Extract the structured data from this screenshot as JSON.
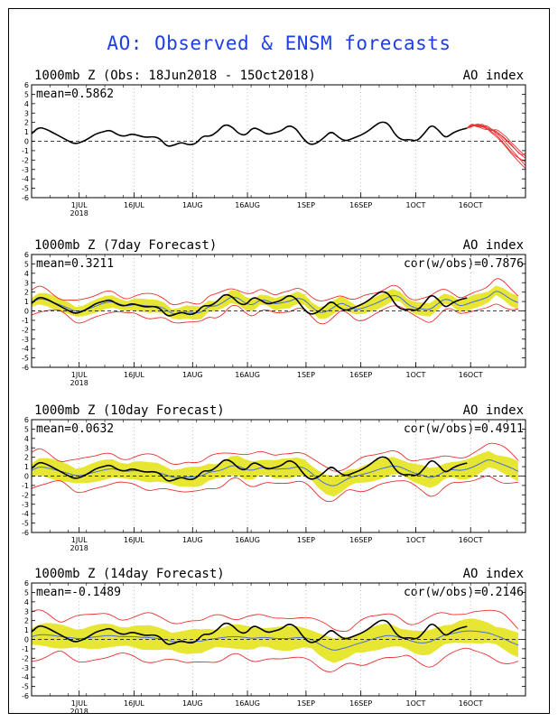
{
  "title": "AO: Observed & ENSM forecasts",
  "colors": {
    "title": "#1f3fe0",
    "observed": "#000000",
    "ensemble_mean": "#4a6fd8",
    "spread": "#e6e633",
    "extremes": "#e83030",
    "grid": "#b0b0b0"
  },
  "x_tick_labels": [
    "1JUL",
    "16JUL",
    "1AUG",
    "16AUG",
    "1SEP",
    "16SEP",
    "1OCT",
    "16OCT"
  ],
  "year_label": "2018",
  "y_tick_labels": [
    "6",
    "5",
    "4",
    "3",
    "2",
    "1",
    "0",
    "-1",
    "-2",
    "-3",
    "-4",
    "-5",
    "-6"
  ],
  "chart_data": [
    {
      "type": "line",
      "title": "1000mb Z (Obs: 18Jun2018 - 15Oct2018)",
      "right_label": "AO index",
      "stat_left": "mean=0.5862",
      "stat_right": "",
      "x_range": [
        "18Jun2018",
        "31Oct2018"
      ],
      "ylim": [
        -6,
        6
      ],
      "grid": true,
      "zero_line": "dashed",
      "observed": [
        0.8,
        1.5,
        1.3,
        0.9,
        0.5,
        0.1,
        -0.3,
        -0.1,
        0.3,
        0.8,
        1.0,
        1.2,
        0.7,
        0.5,
        0.8,
        0.6,
        0.4,
        0.5,
        0.3,
        -0.6,
        -0.4,
        -0.1,
        -0.4,
        -0.3,
        0.6,
        0.5,
        1.0,
        1.8,
        1.6,
        0.8,
        0.6,
        1.5,
        1.2,
        0.7,
        0.9,
        1.1,
        1.7,
        1.4,
        0.3,
        -0.4,
        -0.2,
        0.4,
        1.1,
        0.4,
        0.0,
        0.3,
        0.6,
        1.0,
        1.6,
        2.1,
        1.9,
        0.6,
        0.1,
        0.2,
        0.0,
        0.8,
        1.8,
        1.2,
        0.3,
        0.9,
        1.2,
        1.4
      ],
      "forecast_members": [
        [
          1.4,
          1.8,
          1.5,
          1.9,
          1.5,
          1.2,
          1.1,
          0.6,
          0.1,
          -0.4,
          -0.9,
          -1.4,
          -1.8
        ],
        [
          1.4,
          1.6,
          1.7,
          1.5,
          1.6,
          1.0,
          0.7,
          0.1,
          -0.5,
          -1.1,
          -1.6,
          -1.9,
          -2.2
        ],
        [
          1.4,
          1.9,
          1.6,
          1.4,
          1.2,
          1.4,
          0.9,
          0.4,
          -0.2,
          -0.8,
          -1.4,
          -2.0,
          -2.6
        ],
        [
          1.4,
          1.7,
          1.8,
          1.6,
          1.3,
          1.1,
          1.3,
          0.9,
          0.5,
          -0.1,
          -0.6,
          -1.1,
          -1.6
        ],
        [
          1.4,
          1.5,
          1.9,
          1.7,
          1.4,
          0.9,
          0.5,
          0.0,
          -0.6,
          -1.3,
          -1.8,
          -2.4,
          -2.9
        ],
        [
          1.4,
          1.8,
          1.5,
          1.6,
          1.7,
          1.3,
          0.8,
          0.7,
          0.2,
          -0.3,
          -0.9,
          -1.5,
          -1.3
        ]
      ]
    },
    {
      "type": "line",
      "title": "1000mb Z (7day Forecast)",
      "right_label": "AO index",
      "stat_left": "mean=0.3211",
      "stat_right": "cor(w/obs)=0.7876",
      "x_range": [
        "18Jun2018",
        "31Oct2018"
      ],
      "ylim": [
        -6,
        6
      ],
      "grid": true,
      "zero_line": "dashed",
      "observed": [
        0.8,
        1.5,
        1.3,
        0.9,
        0.5,
        0.1,
        -0.3,
        -0.1,
        0.3,
        0.8,
        1.0,
        1.2,
        0.7,
        0.5,
        0.8,
        0.6,
        0.4,
        0.5,
        0.3,
        -0.6,
        -0.4,
        -0.1,
        -0.4,
        -0.3,
        0.6,
        0.5,
        1.0,
        1.8,
        1.6,
        0.8,
        0.6,
        1.5,
        1.2,
        0.7,
        0.9,
        1.1,
        1.7,
        1.4,
        0.3,
        -0.4,
        -0.2,
        0.4,
        1.1,
        0.4,
        0.0,
        0.3,
        0.6,
        1.0,
        1.6,
        2.1,
        1.9,
        0.6,
        0.1,
        0.2,
        0.0,
        0.8,
        1.8,
        1.2,
        0.3,
        0.9,
        1.2,
        1.4
      ],
      "ensemble_mean": [
        0.9,
        1.3,
        1.2,
        0.9,
        0.6,
        0.3,
        -0.1,
        0.0,
        0.3,
        0.6,
        0.9,
        1.0,
        0.7,
        0.5,
        0.7,
        0.6,
        0.5,
        0.5,
        0.3,
        -0.3,
        -0.3,
        -0.1,
        -0.2,
        -0.2,
        0.5,
        0.5,
        0.9,
        1.5,
        1.4,
        0.8,
        0.6,
        1.2,
        1.1,
        0.7,
        0.9,
        1.0,
        1.4,
        1.2,
        0.4,
        -0.2,
        -0.1,
        0.4,
        0.9,
        0.5,
        0.1,
        0.3,
        0.6,
        0.9,
        1.3,
        1.7,
        1.5,
        0.7,
        0.3,
        0.2,
        0.1,
        0.7,
        1.3,
        1.1,
        0.5,
        0.7,
        1.0,
        1.2,
        1.5,
        2.2,
        1.8,
        1.2,
        0.9
      ],
      "spread_width": 0.6,
      "extreme_width": 1.0
    },
    {
      "type": "line",
      "title": "1000mb Z (10day Forecast)",
      "right_label": "AO index",
      "stat_left": "mean=0.0632",
      "stat_right": "cor(w/obs)=0.4911",
      "x_range": [
        "18Jun2018",
        "31Oct2018"
      ],
      "ylim": [
        -6,
        6
      ],
      "grid": true,
      "zero_line": "dashed",
      "observed": [
        0.8,
        1.5,
        1.3,
        0.9,
        0.5,
        0.1,
        -0.3,
        -0.1,
        0.3,
        0.8,
        1.0,
        1.2,
        0.7,
        0.5,
        0.8,
        0.6,
        0.4,
        0.5,
        0.3,
        -0.6,
        -0.4,
        -0.1,
        -0.4,
        -0.3,
        0.6,
        0.5,
        1.0,
        1.8,
        1.6,
        0.8,
        0.6,
        1.5,
        1.2,
        0.7,
        0.9,
        1.1,
        1.7,
        1.4,
        0.3,
        -0.4,
        -0.2,
        0.4,
        1.1,
        0.4,
        0.0,
        0.3,
        0.6,
        1.0,
        1.6,
        2.1,
        1.9,
        0.6,
        0.1,
        0.2,
        0.0,
        0.8,
        1.8,
        1.2,
        0.3,
        0.9,
        1.2,
        1.4
      ],
      "ensemble_mean": [
        0.6,
        1.0,
        0.9,
        0.7,
        0.5,
        0.3,
        0.0,
        0.1,
        0.3,
        0.5,
        0.7,
        0.8,
        0.6,
        0.5,
        0.6,
        0.5,
        0.4,
        0.4,
        0.2,
        -0.1,
        -0.2,
        -0.1,
        -0.1,
        0.0,
        0.4,
        0.5,
        0.7,
        1.1,
        1.1,
        0.7,
        0.6,
        0.9,
        0.9,
        0.7,
        0.8,
        0.8,
        1.0,
        0.9,
        0.3,
        -0.4,
        -0.9,
        -1.1,
        -0.7,
        -0.2,
        0.0,
        0.2,
        0.4,
        0.7,
        0.9,
        1.1,
        1.0,
        0.6,
        0.3,
        0.1,
        -0.2,
        0.0,
        0.5,
        0.7,
        0.6,
        0.7,
        1.0,
        1.4,
        1.8,
        1.5,
        1.2,
        0.9,
        0.5
      ],
      "spread_width": 0.9,
      "extreme_width": 1.5
    },
    {
      "type": "line",
      "title": "1000mb Z (14day Forecast)",
      "right_label": "AO index",
      "stat_left": "mean=-0.1489",
      "stat_right": "cor(w/obs)=0.2146",
      "x_range": [
        "18Jun2018",
        "31Oct2018"
      ],
      "ylim": [
        -6,
        6
      ],
      "grid": true,
      "zero_line": "dashed",
      "observed": [
        0.8,
        1.5,
        1.3,
        0.9,
        0.5,
        0.1,
        -0.3,
        -0.1,
        0.3,
        0.8,
        1.0,
        1.2,
        0.7,
        0.5,
        0.8,
        0.6,
        0.4,
        0.5,
        0.3,
        -0.6,
        -0.4,
        -0.1,
        -0.4,
        -0.3,
        0.6,
        0.5,
        1.0,
        1.8,
        1.6,
        0.8,
        0.6,
        1.5,
        1.2,
        0.7,
        0.9,
        1.1,
        1.7,
        1.4,
        0.3,
        -0.4,
        -0.2,
        0.4,
        1.1,
        0.4,
        0.0,
        0.3,
        0.6,
        1.0,
        1.6,
        2.1,
        1.9,
        0.6,
        0.1,
        0.2,
        0.0,
        0.8,
        1.8,
        1.2,
        0.3,
        0.9,
        1.2,
        1.4
      ],
      "ensemble_mean": [
        0.3,
        0.5,
        0.5,
        0.4,
        0.3,
        0.2,
        0.1,
        0.1,
        0.2,
        0.3,
        0.4,
        0.4,
        0.3,
        0.3,
        0.3,
        0.2,
        0.2,
        0.1,
        0.0,
        -0.2,
        -0.3,
        -0.3,
        -0.2,
        -0.2,
        0.0,
        0.1,
        0.2,
        0.3,
        0.3,
        0.2,
        0.1,
        0.2,
        0.2,
        0.1,
        0.1,
        0.1,
        0.2,
        0.2,
        0.0,
        -0.5,
        -0.9,
        -1.2,
        -1.0,
        -0.8,
        -0.5,
        -0.3,
        0.0,
        0.2,
        0.4,
        0.4,
        0.2,
        0.0,
        -0.3,
        -0.4,
        -0.3,
        0.1,
        0.5,
        0.6,
        0.8,
        0.9,
        0.9,
        0.8,
        0.7,
        0.4,
        0.1,
        -0.3,
        -0.6
      ],
      "spread_width": 1.1,
      "extreme_width": 2.1
    }
  ]
}
